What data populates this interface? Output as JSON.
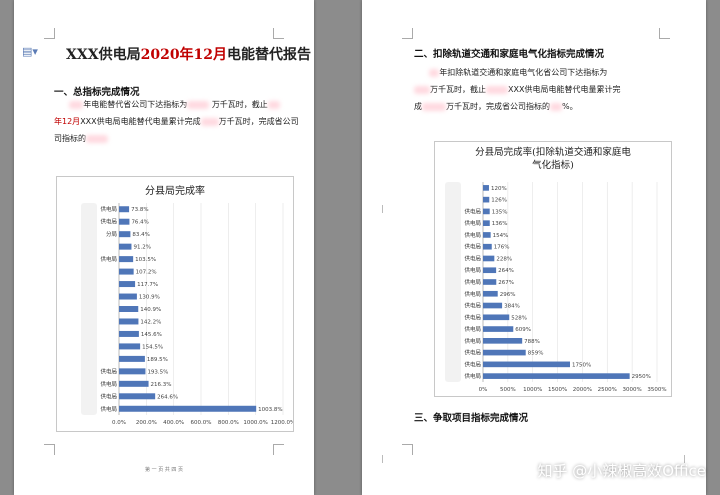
{
  "left_page": {
    "title_prefix": "XXX供电局",
    "title_date": "2020年12月",
    "title_suffix": "电能替代报告",
    "section1_heading": "一、总指标完成情况",
    "para_line1_a": "年电能替代省公司下达指标为",
    "para_line1_b": "万千瓦时，截止",
    "para_line2_red": "年12月",
    "para_line2_a": "XXX供电局电能替代电量累计完成",
    "para_line2_b": "万千瓦时，完成省公司",
    "para_line3_a": "司指标的",
    "chart_title": "分县局完成率",
    "page_footer": "第 一 页 共 四 页"
  },
  "right_page": {
    "section2_heading": "二、扣除轨道交通和家庭电气化指标完成情况",
    "para_line1_a": "年扣除轨道交通和家庭电气化省公司下达指标为",
    "para_line2_a": "万千瓦时，截止",
    "para_line2_b": "XXX供电局电能替代电量累计完",
    "para_line3_a": "成",
    "para_line3_b": "万千瓦时，完成省公司指标的",
    "para_line3_c": "%。",
    "chart_title_line1": "分县局完成率(扣除轨道交通和家庭电",
    "chart_title_line2": "气化指标)",
    "section3_heading": "三、争取项目指标完成情况"
  },
  "watermark": "知乎 @小辣椒高效Office",
  "colors": {
    "bar": "#4f76b8",
    "red_text": "#c00000",
    "background": "#8c8c8c"
  },
  "icons": {
    "doc": "document-icon"
  },
  "chart_data": [
    {
      "type": "bar",
      "orientation": "horizontal",
      "title": "分县局完成率",
      "categories": [
        "供电局",
        "供电局",
        "分局",
        "",
        "供电局",
        "",
        "",
        "",
        "",
        "",
        "",
        "",
        "",
        "供电局",
        "供电局",
        "供电局",
        "供电局"
      ],
      "values": [
        73.8,
        76.4,
        83.4,
        91.2,
        103.5,
        107.2,
        117.7,
        130.9,
        140.9,
        142.2,
        145.6,
        154.5,
        189.5,
        193.5,
        216.3,
        264.6,
        1003.8
      ],
      "value_labels": [
        "73.8%",
        "76.4%",
        "83.4%",
        "91.2%",
        "103.5%",
        "107.2%",
        "117.7%",
        "130.9%",
        "140.9%",
        "142.2%",
        "145.6%",
        "154.5%",
        "189.5%",
        "193.5%",
        "216.3%",
        "264.6%",
        "1003.8%"
      ],
      "xlim": [
        0,
        1200
      ],
      "xticks": [
        "0.0%",
        "200.0%",
        "400.0%",
        "600.0%",
        "800.0%",
        "1000.0%",
        "1200.0%"
      ],
      "grid": true
    },
    {
      "type": "bar",
      "orientation": "horizontal",
      "title": "分县局完成率(扣除轨道交通和家庭电气化指标)",
      "categories": [
        "",
        "",
        "供电局",
        "供电局",
        "供电局",
        "供电局",
        "供电局",
        "供电局",
        "供电局",
        "供电局",
        "供电局",
        "供电局",
        "供电局",
        "供电局",
        "供电局",
        "供电局",
        "供电局"
      ],
      "values": [
        120,
        126,
        135,
        136,
        154,
        176,
        228,
        264,
        267,
        296,
        384,
        528,
        609,
        788,
        859,
        1750,
        2950
      ],
      "value_labels": [
        "120%",
        "126%",
        "135%",
        "136%",
        "154%",
        "176%",
        "228%",
        "264%",
        "267%",
        "296%",
        "384%",
        "528%",
        "609%",
        "788%",
        "859%",
        "1750%",
        "2950%"
      ],
      "xlim": [
        0,
        3500
      ],
      "xticks": [
        "0%",
        "500%",
        "1000%",
        "1500%",
        "2000%",
        "2500%",
        "3000%",
        "3500%"
      ],
      "grid": true
    }
  ]
}
